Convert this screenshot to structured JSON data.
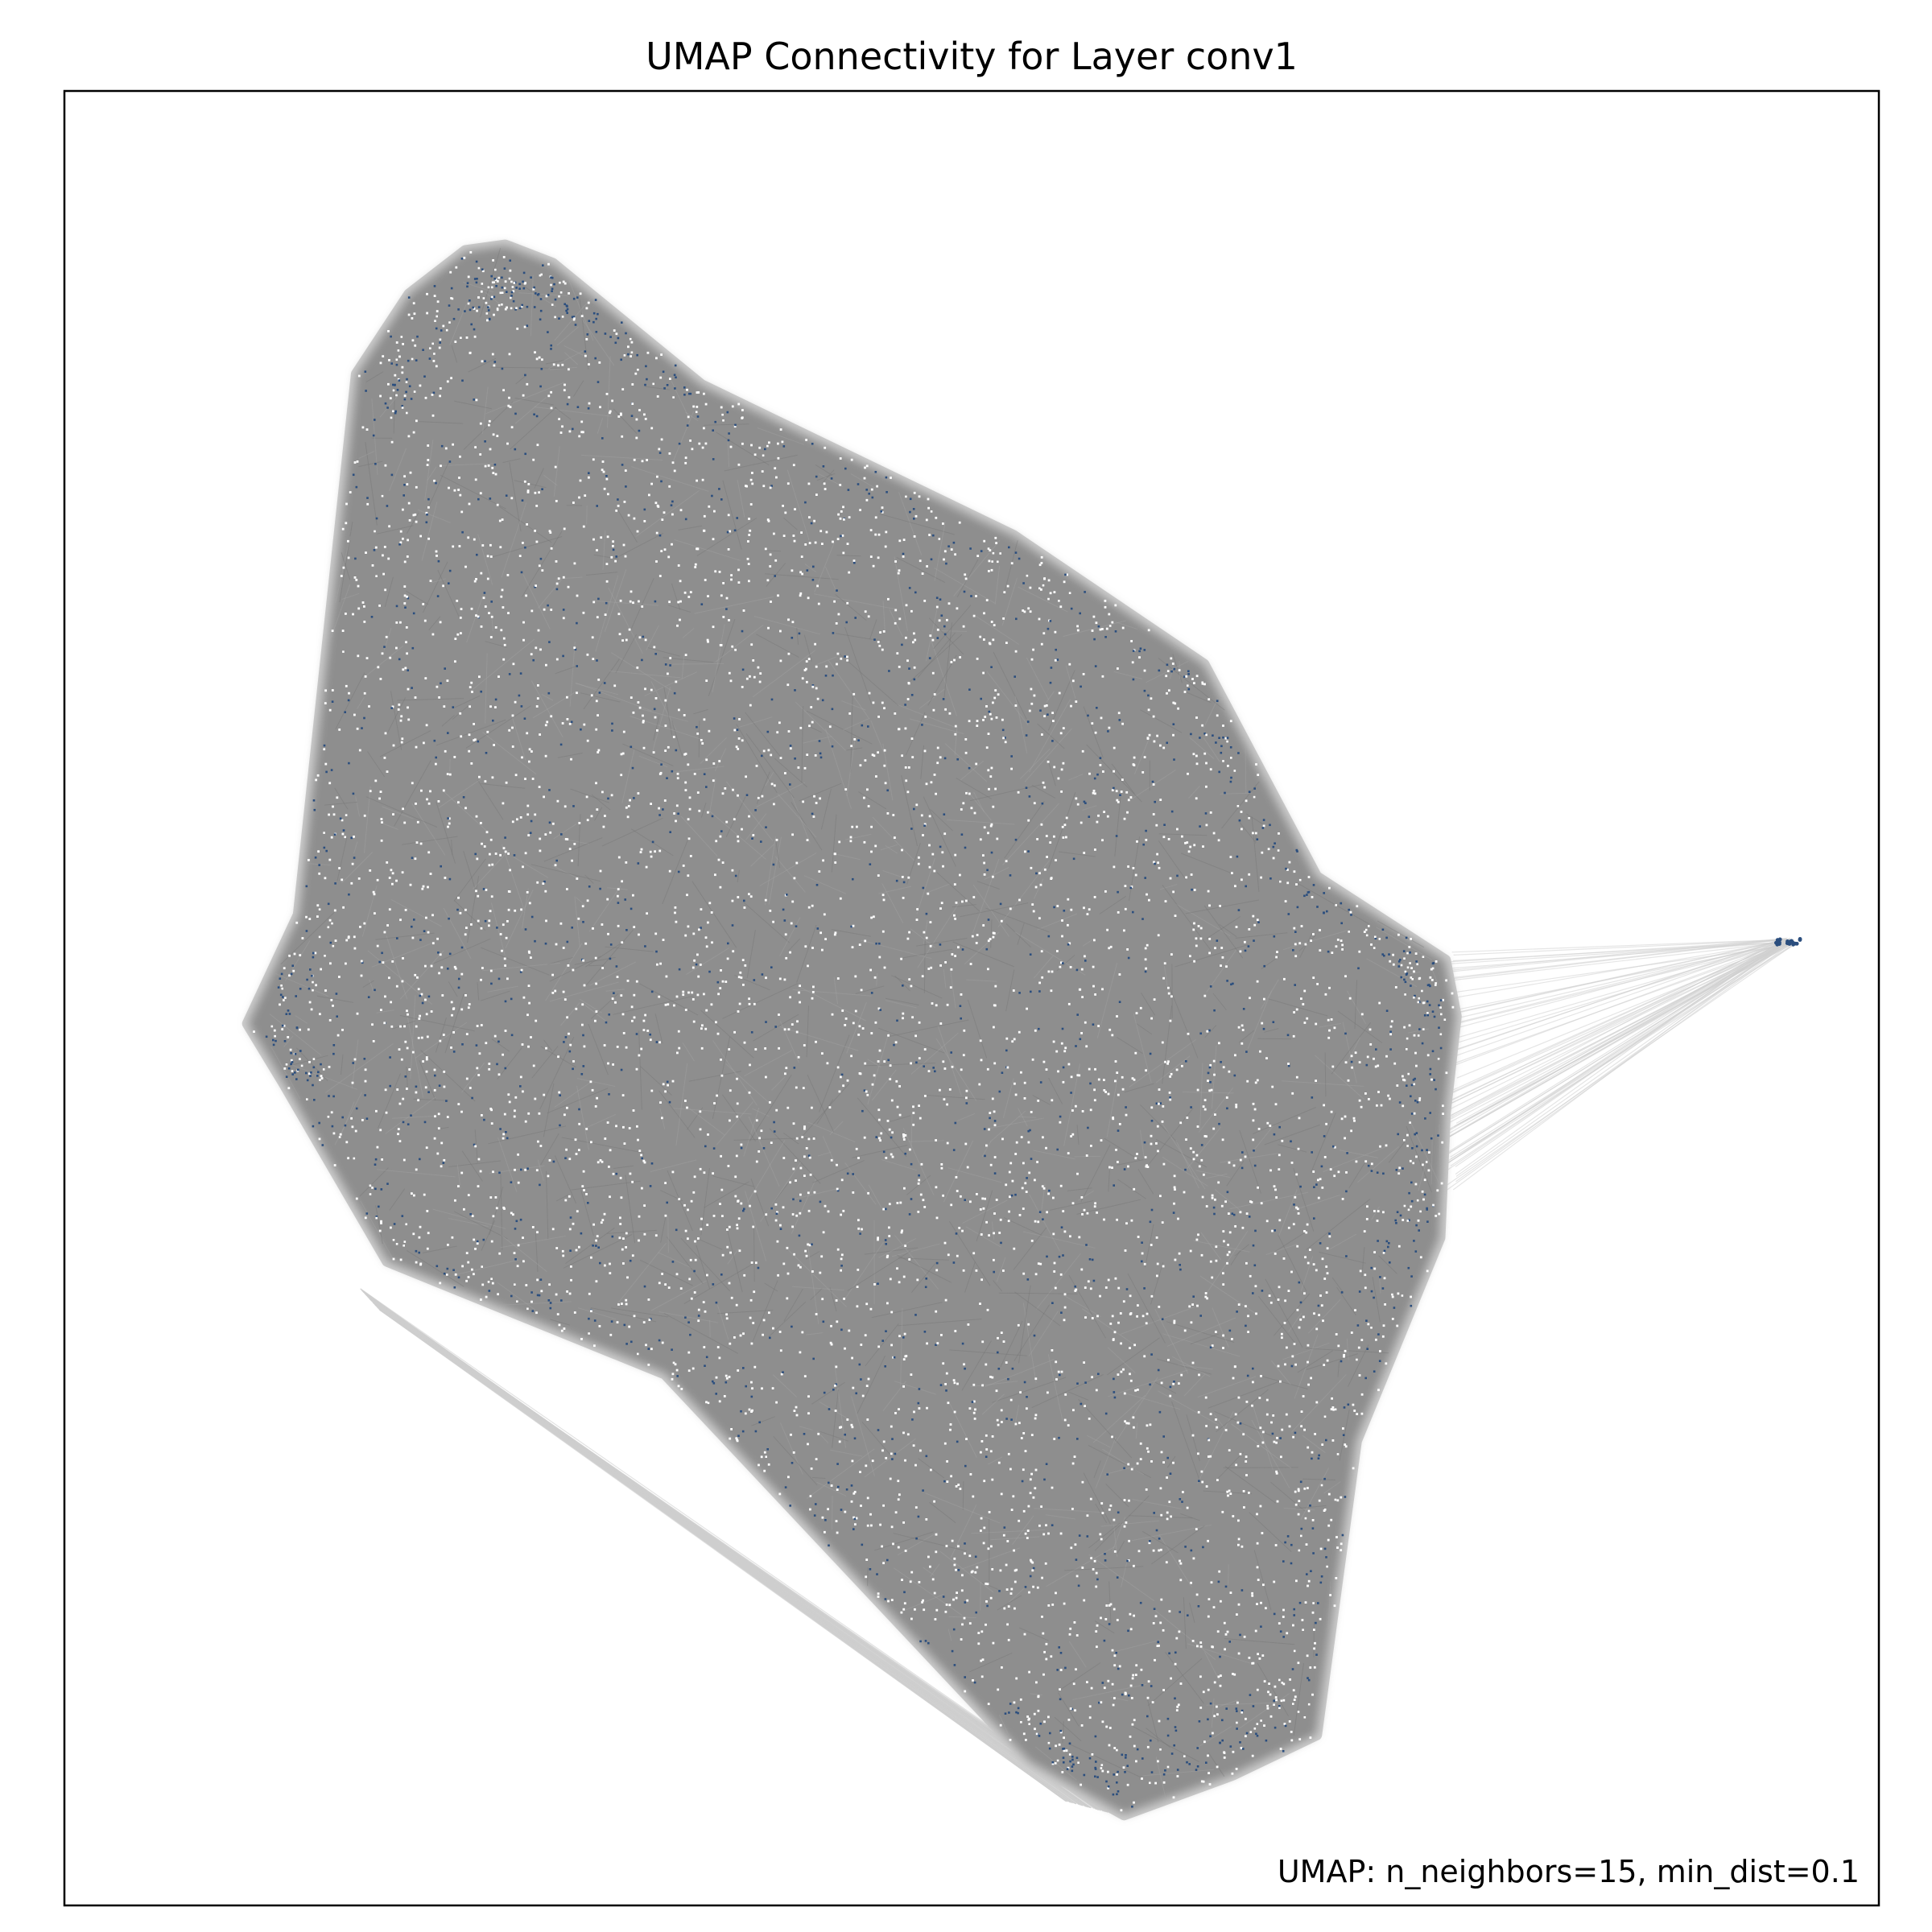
{
  "chart_data": {
    "type": "scatter",
    "title": "UMAP Connectivity for Layer conv1",
    "xlabel": "",
    "ylabel": "",
    "annotation": "UMAP: n_neighbors=15, min_dist=0.1",
    "axes_ticks": "none",
    "grid": false,
    "legend": "none",
    "colors": {
      "background": "#ffffff",
      "frame": "#000000",
      "edges": "#9a9a9a",
      "edge_bundle": "#cfcfcf",
      "points_light": "#ffffff",
      "points_dark": "#2b4e7e"
    },
    "xlim": [
      0,
      100
    ],
    "ylim": [
      0,
      100
    ],
    "main_cluster_outline": [
      [
        22.1,
        91.2
      ],
      [
        24.3,
        91.5
      ],
      [
        26.9,
        90.5
      ],
      [
        35.1,
        83.8
      ],
      [
        52.3,
        75.5
      ],
      [
        62.8,
        68.4
      ],
      [
        69.0,
        56.7
      ],
      [
        76.1,
        52.1
      ],
      [
        76.7,
        49.0
      ],
      [
        76.1,
        43.7
      ],
      [
        75.8,
        36.8
      ],
      [
        71.2,
        25.6
      ],
      [
        69.0,
        9.4
      ],
      [
        64.4,
        7.2
      ],
      [
        58.4,
        5.0
      ],
      [
        53.2,
        7.9
      ],
      [
        33.1,
        29.3
      ],
      [
        17.8,
        35.5
      ],
      [
        12.1,
        45.3
      ],
      [
        10.1,
        48.6
      ],
      [
        12.9,
        54.6
      ],
      [
        16.1,
        84.4
      ],
      [
        19.0,
        88.8
      ]
    ],
    "outlier_cluster": {
      "x": 95.0,
      "y": 53.1
    },
    "bridge_anchor_range": {
      "x": 75.9,
      "y": [
        39.1,
        52.7
      ]
    },
    "lower_bundle": {
      "from": [
        [
          16.3,
          34.0
        ],
        [
          17.4,
          32.8
        ]
      ],
      "to": [
        [
          55.0,
          5.8
        ],
        [
          58.0,
          5.0
        ]
      ]
    }
  }
}
